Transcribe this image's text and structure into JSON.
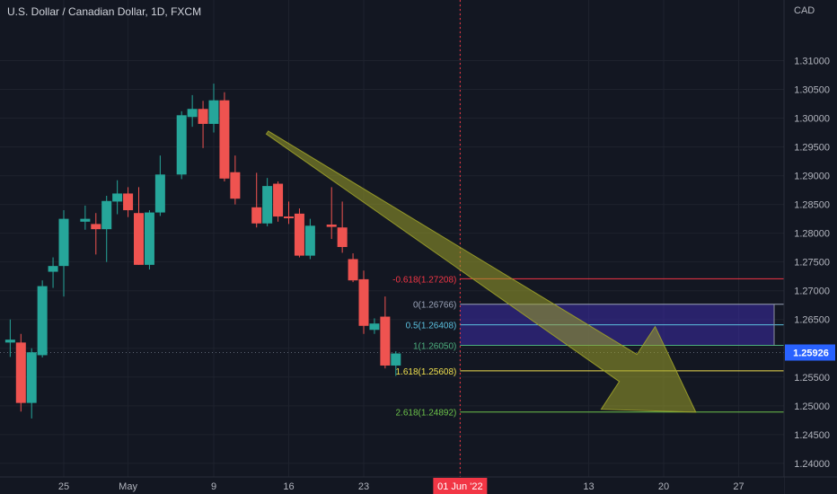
{
  "header": {
    "symbol_title": "U.S. Dollar / Canadian Dollar, 1D, FXCM",
    "currency": "CAD"
  },
  "chart_data": {
    "type": "candlestick",
    "title": "U.S. Dollar / Canadian Dollar, 1D, FXCM",
    "ylim": [
      1.2392,
      1.3146
    ],
    "y_ticks": [
      "1.31000",
      "1.30500",
      "1.30000",
      "1.29500",
      "1.29000",
      "1.28500",
      "1.28000",
      "1.27500",
      "1.27000",
      "1.26500",
      "1.26000",
      "1.25500",
      "1.25000",
      "1.24500",
      "1.24000"
    ],
    "x_ticks": [
      {
        "label": "25",
        "day": 0
      },
      {
        "label": "May",
        "day": 6
      },
      {
        "label": "9",
        "day": 14
      },
      {
        "label": "16",
        "day": 21
      },
      {
        "label": "23",
        "day": 28
      },
      {
        "label": "01 Jun '22",
        "day": 37,
        "highlight": true
      },
      {
        "label": "13",
        "day": 49
      },
      {
        "label": "20",
        "day": 56
      },
      {
        "label": "27",
        "day": 63
      }
    ],
    "colors": {
      "up": "#26a69a",
      "down": "#ef5350",
      "background": "#131722",
      "grid": "#1e222d",
      "axis_text": "#b2b5be"
    },
    "candles": [
      {
        "day": -5,
        "open": 1.261,
        "high": 1.265,
        "low": 1.2585,
        "close": 1.2615
      },
      {
        "day": -4,
        "open": 1.261,
        "high": 1.2625,
        "low": 1.249,
        "close": 1.2505
      },
      {
        "day": -3,
        "open": 1.2505,
        "high": 1.26,
        "low": 1.2478,
        "close": 1.2593
      },
      {
        "day": -2,
        "open": 1.2588,
        "high": 1.2718,
        "low": 1.2584,
        "close": 1.2708
      },
      {
        "day": -1,
        "open": 1.2733,
        "high": 1.2758,
        "low": 1.2705,
        "close": 1.2743
      },
      {
        "day": 0,
        "open": 1.2743,
        "high": 1.284,
        "low": 1.269,
        "close": 1.2825
      },
      {
        "day": 2,
        "open": 1.282,
        "high": 1.2848,
        "low": 1.2806,
        "close": 1.2825
      },
      {
        "day": 3,
        "open": 1.2816,
        "high": 1.2835,
        "low": 1.2763,
        "close": 1.2807
      },
      {
        "day": 4,
        "open": 1.2807,
        "high": 1.2865,
        "low": 1.275,
        "close": 1.2856
      },
      {
        "day": 5,
        "open": 1.2855,
        "high": 1.2892,
        "low": 1.2833,
        "close": 1.2869
      },
      {
        "day": 6,
        "open": 1.2869,
        "high": 1.288,
        "low": 1.2828,
        "close": 1.284
      },
      {
        "day": 7,
        "open": 1.2835,
        "high": 1.288,
        "low": 1.2745,
        "close": 1.2745
      },
      {
        "day": 8,
        "open": 1.2745,
        "high": 1.284,
        "low": 1.2737,
        "close": 1.2836
      },
      {
        "day": 9,
        "open": 1.2836,
        "high": 1.2935,
        "low": 1.283,
        "close": 1.2902
      },
      {
        "day": 11,
        "open": 1.2902,
        "high": 1.3012,
        "low": 1.2894,
        "close": 1.3005
      },
      {
        "day": 12,
        "open": 1.3002,
        "high": 1.304,
        "low": 1.2985,
        "close": 1.3016
      },
      {
        "day": 13,
        "open": 1.3016,
        "high": 1.303,
        "low": 1.2948,
        "close": 1.299
      },
      {
        "day": 14,
        "open": 1.299,
        "high": 1.306,
        "low": 1.2975,
        "close": 1.3031
      },
      {
        "day": 15,
        "open": 1.3031,
        "high": 1.3045,
        "low": 1.289,
        "close": 1.2895
      },
      {
        "day": 16,
        "open": 1.2906,
        "high": 1.2935,
        "low": 1.285,
        "close": 1.286
      },
      {
        "day": 18,
        "open": 1.2845,
        "high": 1.2905,
        "low": 1.281,
        "close": 1.2817
      },
      {
        "day": 19,
        "open": 1.2817,
        "high": 1.2896,
        "low": 1.2812,
        "close": 1.2882
      },
      {
        "day": 20,
        "open": 1.2886,
        "high": 1.289,
        "low": 1.282,
        "close": 1.2829
      },
      {
        "day": 21,
        "open": 1.2829,
        "high": 1.2855,
        "low": 1.2816,
        "close": 1.2826
      },
      {
        "day": 22,
        "open": 1.2834,
        "high": 1.2843,
        "low": 1.2758,
        "close": 1.2761
      },
      {
        "day": 23,
        "open": 1.2761,
        "high": 1.2825,
        "low": 1.2755,
        "close": 1.2813
      },
      {
        "day": 25,
        "open": 1.2815,
        "high": 1.288,
        "low": 1.279,
        "close": 1.2811
      },
      {
        "day": 26,
        "open": 1.281,
        "high": 1.2855,
        "low": 1.2766,
        "close": 1.2776
      },
      {
        "day": 27,
        "open": 1.2755,
        "high": 1.2765,
        "low": 1.2715,
        "close": 1.2718
      },
      {
        "day": 28,
        "open": 1.272,
        "high": 1.2735,
        "low": 1.2625,
        "close": 1.2639
      },
      {
        "day": 29,
        "open": 1.2632,
        "high": 1.2652,
        "low": 1.2625,
        "close": 1.2643
      },
      {
        "day": 30,
        "open": 1.2655,
        "high": 1.269,
        "low": 1.2565,
        "close": 1.257
      },
      {
        "day": 31,
        "open": 1.257,
        "high": 1.2595,
        "low": 1.2552,
        "close": 1.2591
      }
    ],
    "last_price": {
      "value": 1.25926,
      "label": "1.25926"
    },
    "fibonacci": {
      "levels": [
        {
          "ratio_label": "-0.618(1.27208)",
          "price": 1.27208,
          "color": "#f23645"
        },
        {
          "ratio_label": "0(1.26766)",
          "price": 1.26766,
          "color": "#9aa3b8"
        },
        {
          "ratio_label": "0.5(1.26408)",
          "price": 1.26408,
          "color": "#5bc0de"
        },
        {
          "ratio_label": "1(1.26050)",
          "price": 1.2605,
          "color": "#4caf7d"
        },
        {
          "ratio_label": "1.618(1.25608)",
          "price": 1.25608,
          "color": "#f0e04f"
        },
        {
          "ratio_label": "2.618(1.24892)",
          "price": 1.24892,
          "color": "#6cc24a"
        }
      ],
      "zone_top": 1.26766,
      "zone_bottom": 1.2605,
      "zone_color": "#3d2ba8"
    },
    "arrow": {
      "from_day": 19,
      "from_price": 1.2975,
      "to_day": 59,
      "to_price": 1.2489,
      "color": "#9da12a"
    }
  }
}
